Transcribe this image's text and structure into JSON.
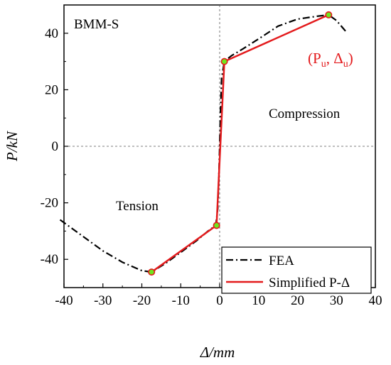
{
  "chart_data": {
    "type": "line",
    "title": "",
    "xlabel": "Δ/mm",
    "ylabel": "P/kN",
    "xlim": [
      -40,
      40
    ],
    "ylim": [
      -50,
      50
    ],
    "xticks": [
      -40,
      -30,
      -20,
      -10,
      0,
      10,
      20,
      30,
      40
    ],
    "yticks": [
      -40,
      -20,
      0,
      20,
      40
    ],
    "xtick_labels": [
      "-40",
      "-30",
      "-20",
      "-10",
      "0",
      "10",
      "20",
      "30",
      "40"
    ],
    "ytick_labels": [
      "-40",
      "-20",
      "0",
      "20",
      "40"
    ],
    "zero_lines": true,
    "series": [
      {
        "name": "FEA",
        "style": "dash-dot",
        "color": "#000000",
        "x": [
          -41.0,
          -35.0,
          -30.0,
          -25.0,
          -20.0,
          -17.5,
          -14.0,
          -10.0,
          -6.0,
          -3.0,
          -1.0,
          -0.5,
          -0.2,
          0.0,
          0.2,
          0.5,
          1.2,
          3.0,
          6.0,
          10.0,
          15.0,
          20.0,
          25.0,
          28.0,
          30.0,
          32.5
        ],
        "y": [
          -26.0,
          -32.0,
          -37.0,
          -41.0,
          -44.0,
          -44.5,
          -41.5,
          -37.5,
          -33.5,
          -30.0,
          -28.0,
          -22.0,
          -10.0,
          0.0,
          12.0,
          24.0,
          30.0,
          32.0,
          34.5,
          38.0,
          42.5,
          45.0,
          46.0,
          46.5,
          44.5,
          40.5
        ]
      },
      {
        "name": "Simplified P-Δ",
        "style": "solid",
        "color": "#e31a1c",
        "x": [
          -17.5,
          -0.8,
          1.2,
          28.0
        ],
        "y": [
          -44.5,
          -28.0,
          30.0,
          46.5
        ]
      }
    ],
    "key_points": [
      {
        "x": -17.5,
        "y": -44.5
      },
      {
        "x": -0.8,
        "y": -28.0
      },
      {
        "x": 1.2,
        "y": 30.0
      },
      {
        "x": 28.0,
        "y": 46.5
      }
    ],
    "annotations": {
      "specimen": "BMM-S",
      "compression": "Compression",
      "tension": "Tension",
      "peak_label": "(P",
      "peak_label_sub1": "u",
      "peak_label_sep": ", Δ",
      "peak_label_sub2": "u",
      "peak_label_end": ")"
    },
    "legend": {
      "position": "bottom-right",
      "entries": [
        "FEA",
        "Simplified P-Δ"
      ]
    }
  }
}
